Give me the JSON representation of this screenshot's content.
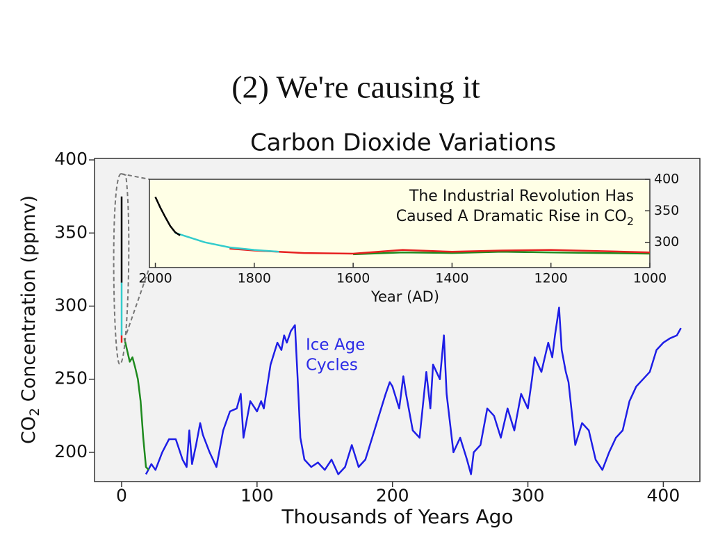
{
  "slide_title": "(2) We're causing it",
  "chart_data": [
    {
      "type": "line",
      "title": "Carbon Dioxide Variations",
      "x_label": "Thousands of Years Ago",
      "y_label": {
        "parts": [
          "CO",
          "2",
          " Concentration (ppmv)"
        ]
      },
      "annotation": [
        "Ice Age",
        "Cycles"
      ],
      "annotation_color": "#2a2ae6",
      "xlim": [
        -20,
        427
      ],
      "ylim": [
        180,
        401
      ],
      "xticks": [
        0,
        100,
        200,
        300,
        400
      ],
      "yticks": [
        200,
        250,
        300,
        350,
        400
      ],
      "series": [
        {
          "color": "#1e1ee6",
          "x": [
            18,
            22,
            25,
            30,
            35,
            40,
            45,
            48,
            50,
            52,
            55,
            58,
            60,
            65,
            70,
            75,
            80,
            85,
            88,
            90,
            95,
            100,
            103,
            105,
            110,
            115,
            118,
            120,
            122,
            125,
            128,
            130,
            132,
            135,
            140,
            145,
            150,
            155,
            160,
            165,
            170,
            175,
            180,
            185,
            190,
            195,
            198,
            200,
            205,
            208,
            210,
            215,
            220,
            225,
            228,
            230,
            235,
            238,
            240,
            245,
            250,
            255,
            258,
            260,
            265,
            270,
            275,
            280,
            285,
            290,
            295,
            300,
            303,
            305,
            310,
            315,
            318,
            320,
            323,
            325,
            328,
            330,
            335,
            340,
            345,
            350,
            355,
            360,
            365,
            370,
            375,
            380,
            385,
            390,
            395,
            400,
            405,
            410,
            413
          ],
          "values": [
            185,
            192,
            188,
            200,
            209,
            209,
            195,
            190,
            215,
            192,
            205,
            220,
            212,
            200,
            190,
            215,
            228,
            230,
            240,
            210,
            235,
            228,
            235,
            230,
            260,
            275,
            270,
            280,
            275,
            283,
            287,
            250,
            210,
            195,
            190,
            193,
            188,
            195,
            185,
            190,
            205,
            190,
            195,
            210,
            225,
            240,
            248,
            245,
            230,
            252,
            240,
            215,
            210,
            255,
            230,
            260,
            250,
            280,
            240,
            200,
            210,
            195,
            185,
            200,
            205,
            230,
            225,
            210,
            230,
            215,
            240,
            230,
            250,
            265,
            255,
            275,
            265,
            280,
            299,
            270,
            255,
            248,
            205,
            220,
            215,
            195,
            188,
            200,
            210,
            215,
            235,
            245,
            250,
            255,
            270,
            275,
            278,
            280,
            285
          ]
        },
        {
          "color": "#1e8a1e",
          "x": [
            2,
            4,
            6,
            8,
            10,
            12,
            14,
            16,
            18,
            20
          ],
          "values": [
            278,
            270,
            262,
            265,
            258,
            250,
            235,
            210,
            190,
            188
          ]
        },
        {
          "color": "#000000",
          "x": [
            0,
            0
          ],
          "values": [
            316,
            375
          ]
        },
        {
          "color": "#33cccc",
          "x": [
            0,
            0
          ],
          "values": [
            280,
            316
          ]
        },
        {
          "color": "#e62020",
          "x": [
            0,
            0
          ],
          "values": [
            275,
            280
          ]
        }
      ]
    },
    {
      "type": "line",
      "x_label": "Year (AD)",
      "note": {
        "lines": [
          "The Industrial Revolution Has",
          "Caused A Dramatic Rise in CO"
        ],
        "subscript": "2"
      },
      "background": "#ffffe6",
      "xlim": [
        2012,
        1000
      ],
      "ylim": [
        260,
        400
      ],
      "xticks": [
        2000,
        1800,
        1600,
        1400,
        1200,
        1000
      ],
      "yticks": [
        300,
        350,
        400
      ],
      "series": [
        {
          "color": "#1e8a1e",
          "x": [
            1600,
            1500,
            1400,
            1300,
            1200,
            1100,
            1000
          ],
          "values": [
            281,
            284,
            283,
            285,
            284,
            283,
            282
          ]
        },
        {
          "color": "#e62020",
          "x": [
            1850,
            1800,
            1700,
            1600,
            1500,
            1400,
            1300,
            1200,
            1100,
            1000
          ],
          "values": [
            290,
            287,
            283,
            282,
            288,
            285,
            287,
            288,
            286,
            284
          ]
        },
        {
          "color": "#33cccc",
          "x": [
            1960,
            1900,
            1850,
            1800,
            1750
          ],
          "values": [
            315,
            300,
            292,
            288,
            285
          ]
        },
        {
          "color": "#000000",
          "x": [
            2000,
            1990,
            1980,
            1970,
            1960,
            1950
          ],
          "values": [
            372,
            355,
            340,
            326,
            316,
            311
          ]
        }
      ]
    }
  ]
}
